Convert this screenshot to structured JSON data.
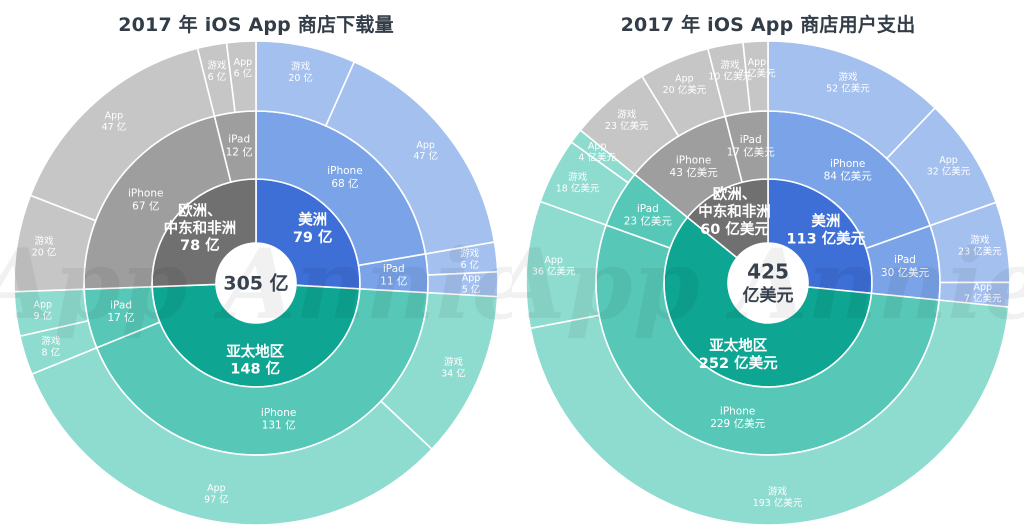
{
  "colors": {
    "americas": [
      "#3d6fd6",
      "#7aa3e8",
      "#a4c0ef"
    ],
    "europe": [
      "#707070",
      "#9e9e9e",
      "#c6c6c6"
    ],
    "apac": [
      "#0ea593",
      "#57c8b8",
      "#8edbcf"
    ],
    "label": "#ffffff",
    "center_text": "#3a4450"
  },
  "watermark": "App Annie",
  "chart_data": [
    {
      "type": "sunburst",
      "title": "2017 年 iOS App 商店下载量",
      "total_value": 305,
      "total_label": "305 亿",
      "unit": "亿",
      "regions": [
        {
          "key": "americas",
          "name": "美洲",
          "value": 79,
          "value_label": "79 亿",
          "devices": [
            {
              "name": "iPhone",
              "value": 68,
              "value_label": "68 亿",
              "types": [
                {
                  "name": "游戏",
                  "value": 20,
                  "value_label": "20 亿"
                },
                {
                  "name": "App",
                  "value": 47,
                  "value_label": "47 亿"
                }
              ]
            },
            {
              "name": "iPad",
              "value": 11,
              "value_label": "11 亿",
              "types": [
                {
                  "name": "游戏",
                  "value": 6,
                  "value_label": "6 亿"
                },
                {
                  "name": "App",
                  "value": 5,
                  "value_label": "5 亿"
                }
              ]
            }
          ]
        },
        {
          "key": "apac",
          "name": "亚太地区",
          "value": 148,
          "value_label": "148 亿",
          "devices": [
            {
              "name": "iPhone",
              "value": 131,
              "value_label": "131 亿",
              "types": [
                {
                  "name": "游戏",
                  "value": 34,
                  "value_label": "34 亿"
                },
                {
                  "name": "App",
                  "value": 97,
                  "value_label": "97 亿"
                }
              ]
            },
            {
              "name": "iPad",
              "value": 17,
              "value_label": "17 亿",
              "types": [
                {
                  "name": "游戏",
                  "value": 8,
                  "value_label": "8 亿"
                },
                {
                  "name": "App",
                  "value": 9,
                  "value_label": "9 亿"
                }
              ]
            }
          ]
        },
        {
          "key": "europe",
          "name": "欧洲、中东和非洲",
          "name_lines": [
            "欧洲、",
            "中东和非洲"
          ],
          "value": 78,
          "value_label": "78 亿",
          "devices": [
            {
              "name": "iPhone",
              "value": 67,
              "value_label": "67 亿",
              "types": [
                {
                  "name": "游戏",
                  "value": 20,
                  "value_label": "20 亿"
                },
                {
                  "name": "App",
                  "value": 47,
                  "value_label": "47 亿"
                }
              ]
            },
            {
              "name": "iPad",
              "value": 12,
              "value_label": "12 亿",
              "types": [
                {
                  "name": "游戏",
                  "value": 6,
                  "value_label": "6 亿"
                },
                {
                  "name": "App",
                  "value": 6,
                  "value_label": "6 亿"
                }
              ]
            }
          ]
        }
      ]
    },
    {
      "type": "sunburst",
      "title": "2017 年 iOS App 商店用户支出",
      "total_value": 425,
      "total_label_lines": [
        "425",
        "亿美元"
      ],
      "unit": "亿美元",
      "regions": [
        {
          "key": "americas",
          "name": "美洲",
          "value": 113,
          "value_label": "113 亿美元",
          "devices": [
            {
              "name": "iPhone",
              "value": 84,
              "value_label": "84 亿美元",
              "types": [
                {
                  "name": "游戏",
                  "value": 52,
                  "value_label": "52 亿美元"
                },
                {
                  "name": "App",
                  "value": 32,
                  "value_label": "32 亿美元"
                }
              ]
            },
            {
              "name": "iPad",
              "value": 30,
              "value_label": "30 亿美元",
              "types": [
                {
                  "name": "游戏",
                  "value": 23,
                  "value_label": "23 亿美元"
                },
                {
                  "name": "App",
                  "value": 7,
                  "value_label": "7 亿美元"
                }
              ]
            }
          ]
        },
        {
          "key": "apac",
          "name": "亚太地区",
          "value": 252,
          "value_label": "252 亿美元",
          "devices": [
            {
              "name": "iPhone",
              "value": 229,
              "value_label": "229 亿美元",
              "types": [
                {
                  "name": "游戏",
                  "value": 193,
                  "value_label": "193 亿美元"
                },
                {
                  "name": "App",
                  "value": 36,
                  "value_label": "36 亿美元"
                }
              ]
            },
            {
              "name": "iPad",
              "value": 23,
              "value_label": "23 亿美元",
              "types": [
                {
                  "name": "游戏",
                  "value": 18,
                  "value_label": "18 亿美元"
                },
                {
                  "name": "App",
                  "value": 4,
                  "value_label": "4 亿美元"
                }
              ]
            }
          ]
        },
        {
          "key": "europe",
          "name": "欧洲、中东和非洲",
          "name_lines": [
            "欧洲、",
            "中东和非洲"
          ],
          "value": 60,
          "value_label": "60 亿美元",
          "devices": [
            {
              "name": "iPhone",
              "value": 43,
              "value_label": "43 亿美元",
              "types": [
                {
                  "name": "游戏",
                  "value": 23,
                  "value_label": "23 亿美元"
                },
                {
                  "name": "App",
                  "value": 20,
                  "value_label": "20 亿美元"
                }
              ]
            },
            {
              "name": "iPad",
              "value": 17,
              "value_label": "17 亿美元",
              "types": [
                {
                  "name": "游戏",
                  "value": 10,
                  "value_label": "10 亿美元"
                },
                {
                  "name": "App",
                  "value": 7,
                  "value_label": "7 亿美元"
                }
              ]
            }
          ]
        }
      ]
    }
  ]
}
